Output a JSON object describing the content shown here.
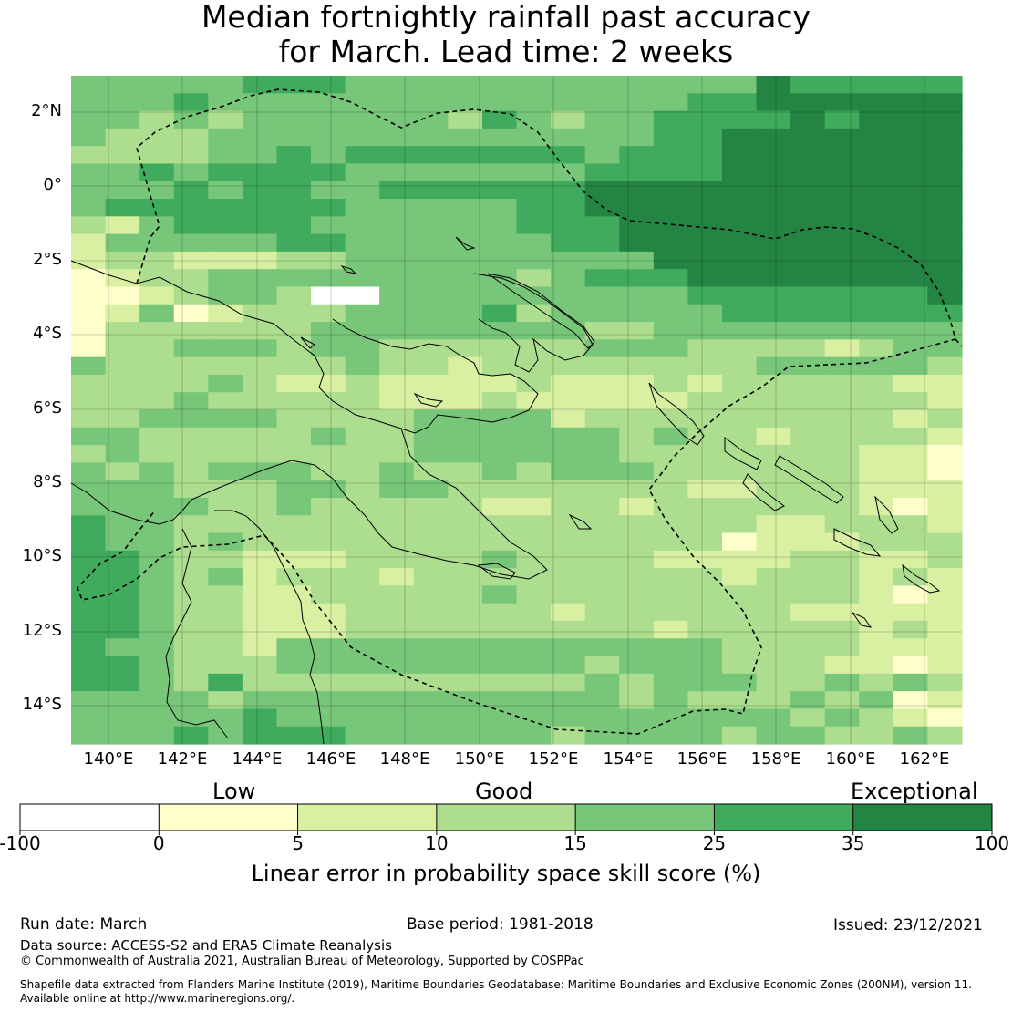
{
  "header": {
    "title_line1": "Median fortnightly rainfall past accuracy",
    "title_line2": "for March. Lead time: 2 weeks"
  },
  "map": {
    "lon_ticks": [
      "140°E",
      "142°E",
      "144°E",
      "146°E",
      "148°E",
      "150°E",
      "152°E",
      "154°E",
      "156°E",
      "158°E",
      "160°E",
      "162°E"
    ],
    "lat_ticks": [
      "2°N",
      "0°",
      "2°S",
      "4°S",
      "6°S",
      "8°S",
      "10°S",
      "12°S",
      "14°S"
    ],
    "grid_rows": [
      "44444555444444444444655555",
      "44454444444444444455666666",
      "44343444444354344555565666",
      "43334444444444444556666666",
      "33334454555555545556666666",
      "44545555444444455556666666",
      "44454554455555566666666666",
      "45555555444445566666666666",
      "32455554444445556666666666",
      "24444455444444556666666666",
      "23322233444444444666666666",
      "12334444444443455566666666",
      "11234430044444444455555556",
      "12412333444453444445555555",
      "13333334444444433444444444",
      "13344434433333344433332344",
      "43333333433233333333444443",
      "33334322322223222323333322",
      "33343333322232222233333332",
      "33444433334444233333333323",
      "44333334334444443433233332",
      "34333333334444443333333221",
      "43434443343343444333333221",
      "44433344344333333322333222",
      "44443343333322332333333212",
      "54433333333333333333223332",
      "54434333333333333331222333",
      "55433222333343333222233223",
      "55434233323333333332333232",
      "55433223333343333333333212",
      "55433222333333233333322222",
      "55433222333333333233333232",
      "54433244444444444443333222",
      "55433344444444434443332212",
      "55435333333333343444334343",
      "44443444444444443433343412",
      "44444544444444444444434321",
      "44454555444444344443443343"
    ]
  },
  "colorbar": {
    "category_labels": [
      "Low",
      "Good",
      "Exceptional"
    ],
    "tick_labels": [
      "-100",
      "0",
      "5",
      "10",
      "15",
      "25",
      "35",
      "100"
    ],
    "colors": [
      "#ffffff",
      "#ffffcc",
      "#d9f0a3",
      "#addd8e",
      "#78c679",
      "#41ab5d",
      "#238443"
    ],
    "axis_label": "Linear error in probability space skill score (%)"
  },
  "footer": {
    "run_date": "Run date: March",
    "base_period": "Base period: 1981-2018",
    "issued": "Issued: 23/12/2021",
    "data_source": "Data source: ACCESS-S2 and ERA5 Climate Reanalysis",
    "copyright": "© Commonwealth of Australia 2021, Australian Bureau of Meteorology, Supported by COSPPac",
    "shapefile_line1": "Shapefile data extracted from Flanders Marine Institute (2019), Maritime Boundaries Geodatabase: Maritime Boundaries and Exclusive Economic Zones (200NM), version 11.",
    "shapefile_line2": "Available online at http://www.marineregions.org/."
  }
}
